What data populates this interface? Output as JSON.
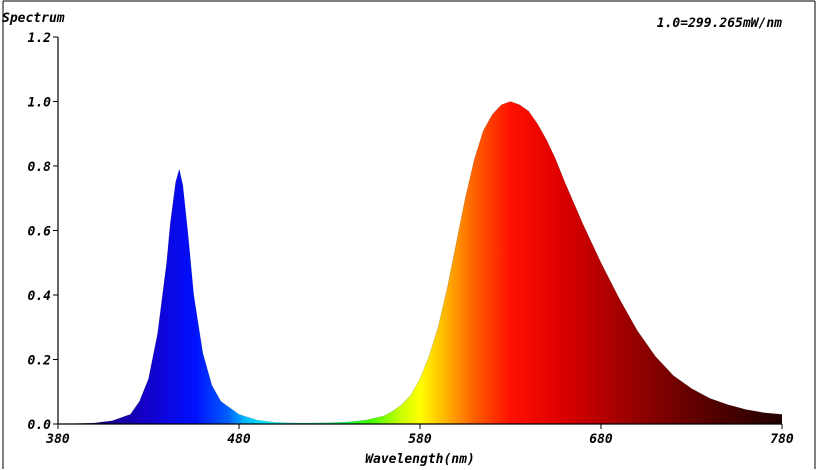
{
  "chart_data": {
    "type": "area",
    "title": "Spectrum",
    "xlabel": "Wavelength(nm)",
    "ylabel": "",
    "scale_note": "1.0=299.265mW/nm",
    "xlim": [
      380,
      780
    ],
    "ylim": [
      0.0,
      1.2
    ],
    "x_ticks": [
      380,
      480,
      580,
      680,
      780
    ],
    "y_ticks": [
      "0.0",
      "0.2",
      "0.4",
      "0.6",
      "0.8",
      "1.0",
      "1.2"
    ],
    "grid": false,
    "fill": "wavelength-color-gradient",
    "series": [
      {
        "x": [
          380,
          400,
          410,
          420,
          425,
          430,
          435,
          440,
          442,
          445,
          447,
          449,
          452,
          455,
          460,
          465,
          470,
          480,
          490,
          500,
          510,
          520,
          530,
          540,
          550,
          560,
          565,
          570,
          575,
          580,
          585,
          590,
          595,
          600,
          605,
          610,
          615,
          620,
          625,
          630,
          635,
          640,
          645,
          650,
          655,
          660,
          670,
          680,
          690,
          700,
          710,
          720,
          730,
          740,
          750,
          760,
          770,
          780
        ],
        "values": [
          0.0,
          0.003,
          0.01,
          0.03,
          0.07,
          0.14,
          0.28,
          0.5,
          0.62,
          0.75,
          0.79,
          0.74,
          0.58,
          0.4,
          0.22,
          0.12,
          0.07,
          0.03,
          0.012,
          0.005,
          0.003,
          0.003,
          0.004,
          0.006,
          0.012,
          0.025,
          0.04,
          0.06,
          0.09,
          0.14,
          0.21,
          0.3,
          0.42,
          0.56,
          0.7,
          0.82,
          0.91,
          0.96,
          0.99,
          1.0,
          0.99,
          0.97,
          0.93,
          0.88,
          0.82,
          0.75,
          0.62,
          0.5,
          0.39,
          0.29,
          0.21,
          0.15,
          0.11,
          0.08,
          0.06,
          0.045,
          0.035,
          0.03
        ]
      }
    ]
  }
}
